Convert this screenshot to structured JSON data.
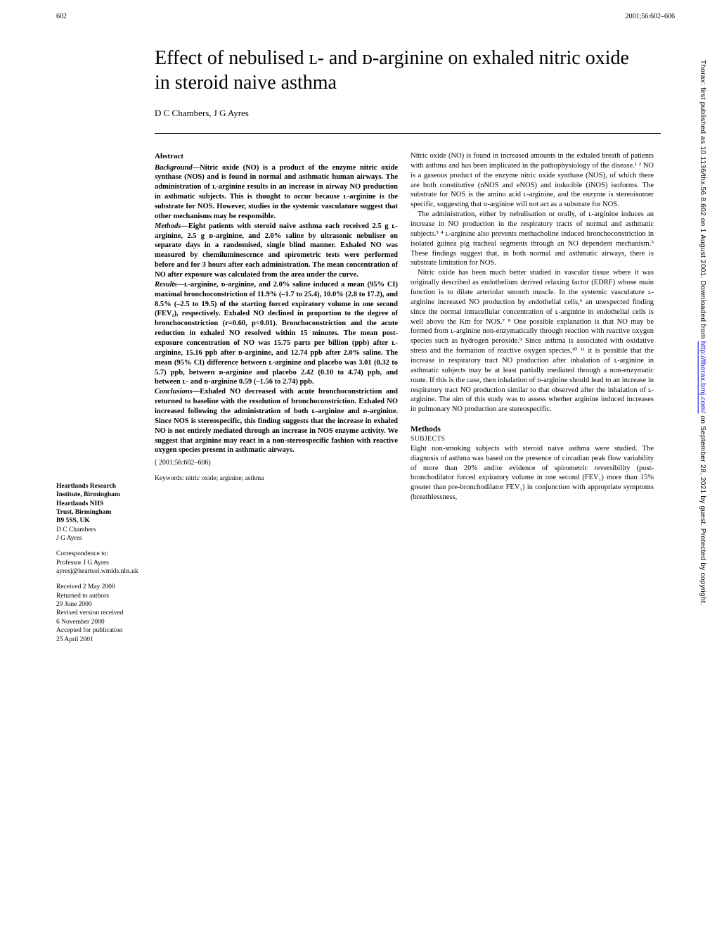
{
  "page_number": "602",
  "citation_top": "2001;56:602–606",
  "vertical_citation_pre": "Thorax: first published as 10.1136/thx.56.8.602 on 1 August 2001. Downloaded from ",
  "vertical_url": "http://thorax.bmj.com/",
  "vertical_citation_post": " on September 28, 2021 by guest. Protected by copyright.",
  "title": "Effect of nebulised ʟ- and ᴅ-arginine on exhaled nitric oxide in steroid naive asthma",
  "authors": "D C Chambers, J G Ayres",
  "abstract_heading": "Abstract",
  "background": "—Nitric oxide (NO) is a product of the enzyme nitric oxide synthase (NOS) and is found in normal and asthmatic human airways. The administration of ʟ-arginine results in an increase in airway NO production in asthmatic subjects. This is thought to occur because ʟ-arginine is the substrate for NOS. However, studies in the systemic vasculature suggest that other mechanisms may be responsible.",
  "methods": "—Eight patients with steroid naive asthma each received 2.5 g ʟ-arginine, 2.5 g ᴅ-arginine, and 2.0% saline by ultrasonic nebuliser on separate days in a randomised, single blind manner. Exhaled NO was measured by chemiluminescence and spirometric tests were performed before and for 3 hours after each administration. The mean concentration of NO after exposure was calculated from the area under the curve.",
  "results": "—ʟ-arginine, ᴅ-arginine, and 2.0% saline induced a mean (95% CI) maximal bronchoconstriction of 11.9% (–1.7 to 25.4), 10.0% (2.8 to 17.2), and 8.5% (–2.5 to 19.5) of the starting forced expiratory volume in one second (FEV₁), respectively. Exhaled NO declined in proportion to the degree of bronchoconstriction (r=0.60, p<0.01). Bronchoconstriction and the acute reduction in exhaled NO resolved within 15 minutes. The mean post-exposure concentration of NO was 15.75 parts per billion (ppb) after ʟ-arginine, 15.16 ppb after ᴅ-arginine, and 12.74 ppb after 2.0% saline. The mean (95% CI) difference between ʟ-arginine and placebo was 3.01 (0.32 to 5.7) ppb, between ᴅ-arginine and placebo 2.42 (0.10 to 4.74) ppb, and between ʟ- and ᴅ-arginine 0.59 (–1.56 to 2.74) ppb.",
  "conclusions": "—Exhaled NO decreased with acute bronchoconstriction and returned to baseline with the resolution of bronchoconstriction. Exhaled NO increased following the administration of both ʟ-arginine and ᴅ-arginine. Since NOS is stereospecific, this finding suggests that the increase in exhaled NO is not entirely mediated through an increase in NOS enzyme activity. We suggest that arginine may react in a non-stereospecific fashion with reactive oxygen species present in asthmatic airways.",
  "citation_bottom": "(            2001;56:602–606)",
  "keywords": "Keywords: nitric oxide; arginine; asthma",
  "body_p1": "Nitric oxide (NO) is found in increased amounts in the exhaled breath of patients with asthma and has been implicated in the pathophysiology of the disease.¹ ² NO is a gaseous product of the enzyme nitric oxide synthase (NOS), of which there are both constitutive (nNOS and eNOS) and inducible (iNOS) isoforms. The substrate for NOS is the amino acid ʟ-arginine, and the enzyme is stereoisomer specific, suggesting that ᴅ-arginine will not act as a substrate for NOS.",
  "body_p2": "The administration, either by nebulisation or orally, of ʟ-arginine induces an increase in NO production in the respiratory tracts of normal and asthmatic subjects.³ ⁴ ʟ-arginine also prevents methacholine induced bronchoconstriction in isolated guinea pig tracheal segments through an NO dependent mechanism.⁵ These findings suggest that, in both normal and asthmatic airways, there is substrate limitation for NOS.",
  "body_p3": "Nitric oxide has been much better studied in vascular tissue where it was originally described as endothelium derived relaxing factor (EDRF) whose main function is to dilate arteriolar smooth muscle. In the systemic vasculature ʟ-arginine increased NO production by endothelial cells,⁶ an unexpected finding since the normal intracellular concentration of ʟ-arginine in endothelial cells is well above the Km for NOS.⁷ ⁸ One possible explanation is that NO may be formed from ʟ-arginine non-enzymatically through reaction with reactive oxygen species such as hydrogen peroxide.⁹ Since asthma is associated with oxidative stress and the formation of reactive oxygen species,¹⁰ ¹¹ it is possible that the increase in respiratory tract NO production after inhalation of ʟ-arginine in asthmatic subjects may be at least partially mediated through a non-enzymatic route. If this is the case, then inhalation of ᴅ-arginine should lead to an increase in respiratory tract NO production similar to that observed after the inhalation of ʟ-arginine. The aim of this study was to assess whether arginine induced increases in pulmonary NO production are stereospecific.",
  "methods_heading": "Methods",
  "subjects_heading": "SUBJECTS",
  "subjects_text": "Eight non-smoking subjects with steroid naive asthma were studied. The diagnosis of asthma was based on the presence of circadian peak flow variability of more than 20% and/or evidence of spirometric reversibility (post-bronchodilator forced expiratory volume in one second (FEV₁) more than 15% greater than pre-bronchodilator FEV₁) in conjunction with appropriate symptoms (breathlessness,",
  "affiliation_lines": {
    "l1": "Heartlands Research",
    "l2": "Institute, Birmingham",
    "l3": "Heartlands NHS",
    "l4": "Trust, Birmingham",
    "l5": "B9 5SS, UK",
    "l6": "D C Chambers",
    "l7": "J G Ayres"
  },
  "correspondence": {
    "l1": "Correspondence to:",
    "l2": "Professor J G Ayres",
    "l3": "ayresj@heartsol.wmids.nhs.uk"
  },
  "received": {
    "l1": "Received 2 May 2000",
    "l2": "Returned to authors",
    "l3": "29 June 2000",
    "l4": "Revised version received",
    "l5": "6 November 2000",
    "l6": "Accepted for publication",
    "l7": "25 April 2001"
  }
}
